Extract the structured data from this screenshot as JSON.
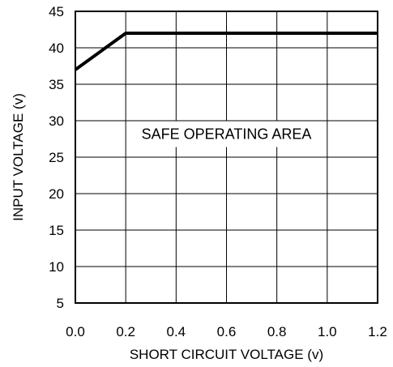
{
  "chart_data": {
    "type": "line",
    "title": "",
    "xlabel": "SHORT CIRCUIT VOLTAGE (v)",
    "ylabel": "INPUT VOLTAGE (v)",
    "xlim": [
      0,
      1.2
    ],
    "ylim": [
      5,
      45
    ],
    "x_ticks": [
      "0.0",
      "0.2",
      "0.4",
      "0.6",
      "0.8",
      "1.0",
      "1.2"
    ],
    "y_ticks": [
      "5",
      "10",
      "15",
      "20",
      "25",
      "30",
      "35",
      "40",
      "45"
    ],
    "grid": true,
    "series": [
      {
        "x": [
          0,
          0.2,
          1.2
        ],
        "y": [
          37,
          42,
          42
        ]
      }
    ],
    "annotations": [
      {
        "text": "SAFE OPERATING AREA",
        "x": 0.6,
        "y": 27.5
      }
    ]
  }
}
